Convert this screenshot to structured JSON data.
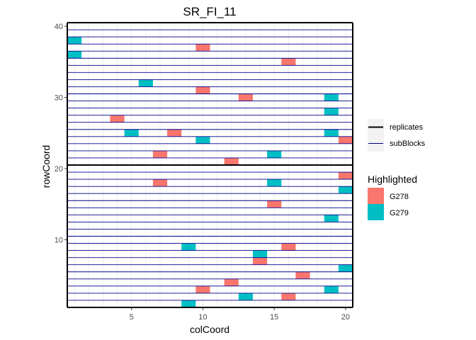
{
  "chart_data": {
    "type": "heatmap",
    "title": "SR_FI_11",
    "xlabel": "colCoord",
    "ylabel": "rowCoord",
    "xlim": [
      0.5,
      20.5
    ],
    "ylim": [
      0.5,
      40.5
    ],
    "x_ticks": [
      5,
      10,
      15,
      20
    ],
    "y_ticks": [
      10,
      20,
      30,
      40
    ],
    "grid": true,
    "line_legend": {
      "position": "right",
      "items": [
        {
          "label": "replicates",
          "color": "#000000"
        },
        {
          "label": "subBlocks",
          "color": "#00008B"
        }
      ]
    },
    "fill_legend": {
      "title": "Highlighted",
      "position": "right",
      "items": [
        {
          "label": "G278",
          "color": "#F8766D"
        },
        {
          "label": "G279",
          "color": "#00BFC4"
        }
      ]
    },
    "replicate_boundaries_y": [
      0.5,
      20.5,
      40.5
    ],
    "subblock_boundaries_y": [
      1.5,
      2.5,
      3.5,
      4.5,
      5.5,
      6.5,
      7.5,
      8.5,
      9.5,
      10.5,
      11.5,
      12.5,
      13.5,
      14.5,
      15.5,
      16.5,
      17.5,
      18.5,
      19.5,
      21.5,
      22.5,
      23.5,
      24.5,
      25.5,
      26.5,
      27.5,
      28.5,
      29.5,
      30.5,
      31.5,
      32.5,
      33.5,
      34.5,
      35.5,
      36.5,
      37.5,
      38.5,
      39.5
    ],
    "cells": [
      {
        "col": 1,
        "row": 38,
        "genotype": "G279"
      },
      {
        "col": 10,
        "row": 37,
        "genotype": "G278"
      },
      {
        "col": 1,
        "row": 36,
        "genotype": "G279"
      },
      {
        "col": 16,
        "row": 35,
        "genotype": "G278"
      },
      {
        "col": 6,
        "row": 32,
        "genotype": "G279"
      },
      {
        "col": 10,
        "row": 31,
        "genotype": "G278"
      },
      {
        "col": 13,
        "row": 30,
        "genotype": "G278"
      },
      {
        "col": 19,
        "row": 30,
        "genotype": "G279"
      },
      {
        "col": 19,
        "row": 28,
        "genotype": "G279"
      },
      {
        "col": 4,
        "row": 27,
        "genotype": "G278"
      },
      {
        "col": 5,
        "row": 25,
        "genotype": "G279"
      },
      {
        "col": 8,
        "row": 25,
        "genotype": "G278"
      },
      {
        "col": 19,
        "row": 25,
        "genotype": "G279"
      },
      {
        "col": 10,
        "row": 24,
        "genotype": "G279"
      },
      {
        "col": 20,
        "row": 24,
        "genotype": "G278"
      },
      {
        "col": 7,
        "row": 22,
        "genotype": "G278"
      },
      {
        "col": 15,
        "row": 22,
        "genotype": "G279"
      },
      {
        "col": 12,
        "row": 21,
        "genotype": "G278"
      },
      {
        "col": 20,
        "row": 19,
        "genotype": "G278"
      },
      {
        "col": 7,
        "row": 18,
        "genotype": "G278"
      },
      {
        "col": 15,
        "row": 18,
        "genotype": "G279"
      },
      {
        "col": 20,
        "row": 17,
        "genotype": "G279"
      },
      {
        "col": 15,
        "row": 15,
        "genotype": "G278"
      },
      {
        "col": 19,
        "row": 13,
        "genotype": "G279"
      },
      {
        "col": 9,
        "row": 9,
        "genotype": "G279"
      },
      {
        "col": 16,
        "row": 9,
        "genotype": "G278"
      },
      {
        "col": 14,
        "row": 8,
        "genotype": "G279"
      },
      {
        "col": 14,
        "row": 7,
        "genotype": "G278"
      },
      {
        "col": 20,
        "row": 6,
        "genotype": "G279"
      },
      {
        "col": 17,
        "row": 5,
        "genotype": "G278"
      },
      {
        "col": 12,
        "row": 4,
        "genotype": "G278"
      },
      {
        "col": 10,
        "row": 3,
        "genotype": "G278"
      },
      {
        "col": 19,
        "row": 3,
        "genotype": "G279"
      },
      {
        "col": 13,
        "row": 2,
        "genotype": "G279"
      },
      {
        "col": 16,
        "row": 2,
        "genotype": "G278"
      },
      {
        "col": 9,
        "row": 1,
        "genotype": "G279"
      }
    ]
  }
}
